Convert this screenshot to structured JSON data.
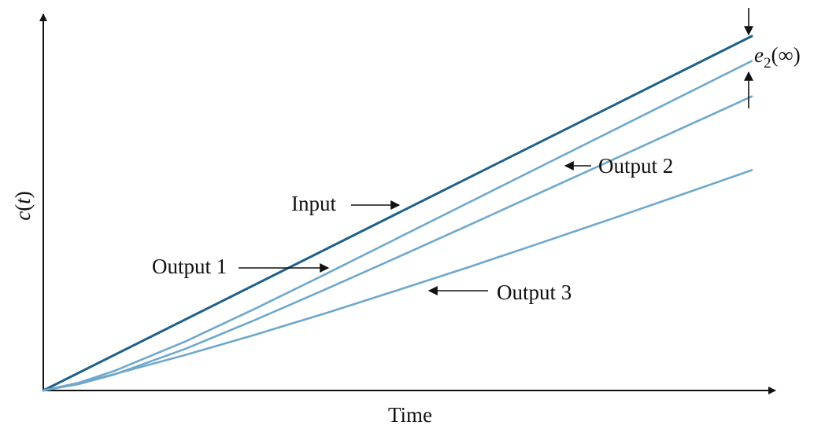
{
  "chart_data": {
    "type": "line",
    "xlabel": "Time",
    "ylabel": "c(t)",
    "ylabel_parts": {
      "fn": "c",
      "open": "(",
      "var": "t",
      "close": ")"
    },
    "grid": false,
    "xlim": [
      0,
      1
    ],
    "ylim": [
      0,
      1
    ],
    "series": [
      {
        "name": "Input",
        "color": "#1f5f8b",
        "x": [
          0,
          0.25,
          0.5,
          0.75,
          1.0
        ],
        "y": [
          0,
          0.25,
          0.5,
          0.75,
          1.0
        ]
      },
      {
        "name": "Output 1",
        "color": "#6fa8cc",
        "x": [
          0,
          0.05,
          0.1,
          0.2,
          0.3,
          0.4,
          0.5,
          0.6,
          0.7,
          0.8,
          0.9,
          1.0
        ],
        "y": [
          0,
          0.022,
          0.055,
          0.138,
          0.232,
          0.33,
          0.43,
          0.53,
          0.63,
          0.73,
          0.83,
          0.93
        ]
      },
      {
        "name": "Output 2",
        "color": "#6fa8cc",
        "x": [
          0,
          0.05,
          0.1,
          0.2,
          0.3,
          0.4,
          0.5,
          0.6,
          0.7,
          0.8,
          0.9,
          1.0
        ],
        "y": [
          0,
          0.018,
          0.045,
          0.117,
          0.2,
          0.287,
          0.376,
          0.466,
          0.557,
          0.648,
          0.739,
          0.83
        ]
      },
      {
        "name": "Output 3",
        "color": "#6fa8cc",
        "x": [
          0,
          0.05,
          0.1,
          0.2,
          0.3,
          0.4,
          0.5,
          0.6,
          0.7,
          0.8,
          0.9,
          1.0
        ],
        "y": [
          0,
          0.021,
          0.046,
          0.1,
          0.158,
          0.219,
          0.283,
          0.348,
          0.415,
          0.483,
          0.552,
          0.622
        ]
      }
    ],
    "annotations": [
      {
        "text": "Input",
        "series": "Input",
        "at_x": 0.5
      },
      {
        "text": "Output 1",
        "series": "Output 1",
        "at_x": 0.4
      },
      {
        "text": "Output 2",
        "series": "Output 2",
        "at_x": 0.74
      },
      {
        "text": "Output 3",
        "series": "Output 3",
        "at_x": 0.55
      }
    ],
    "steady_state_error": {
      "label": "e2(∞)",
      "label_parts": {
        "base": "e",
        "sub": "2",
        "arg": "(∞)"
      },
      "between": [
        "Input",
        "Output 2"
      ],
      "at_x": 1.0
    }
  }
}
